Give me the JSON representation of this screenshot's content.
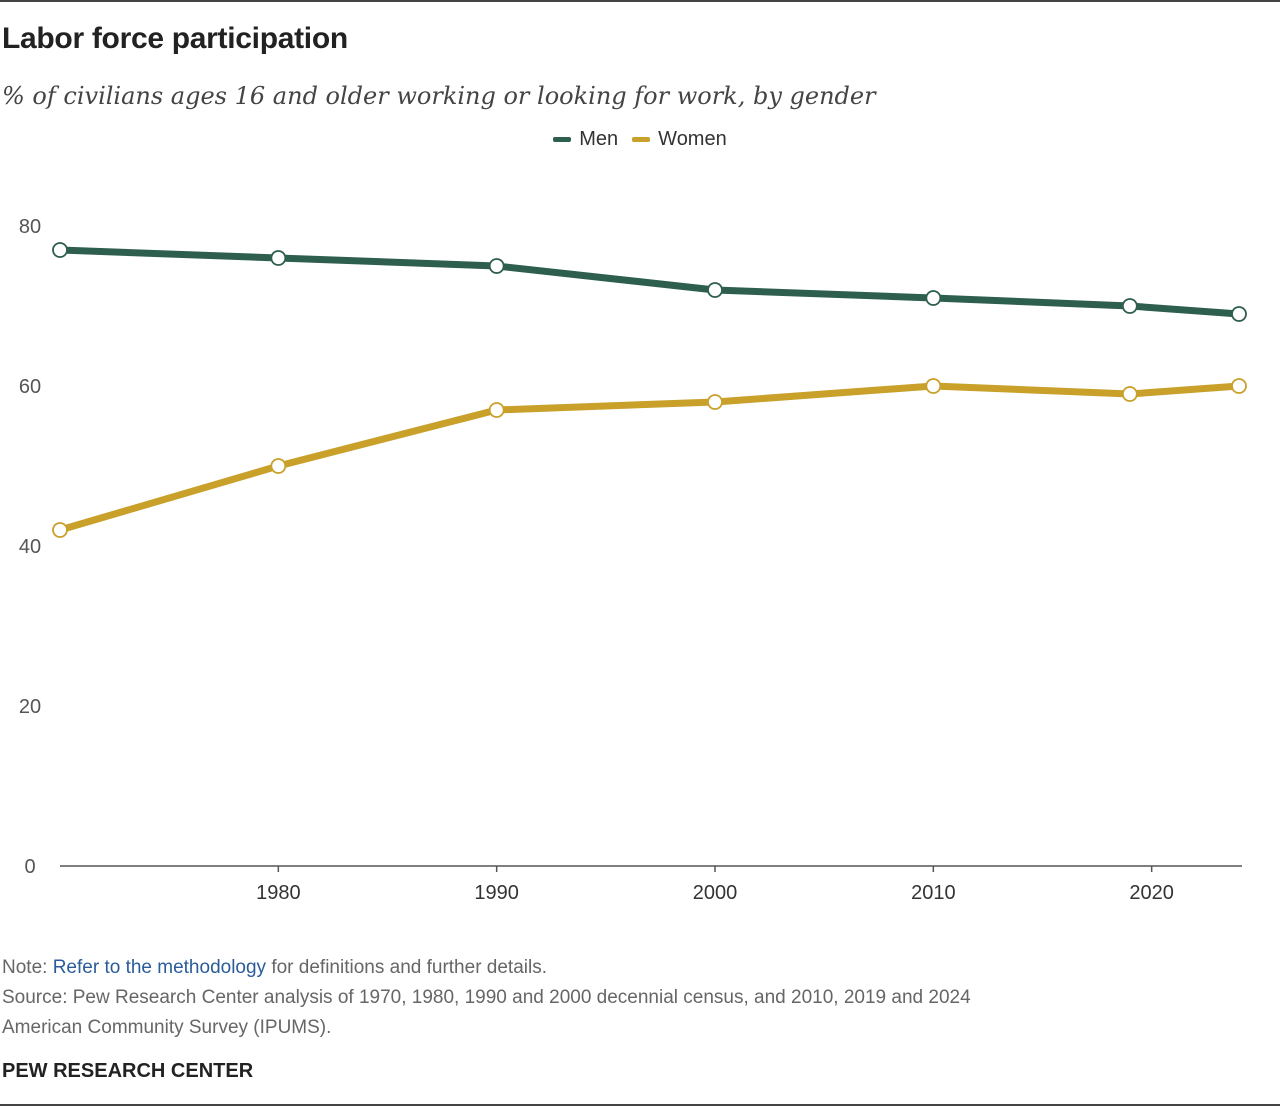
{
  "title": "Labor force participation",
  "subtitle": "% of civilians ages 16 and older working or looking for work, by gender",
  "note": {
    "prefix": "Note: ",
    "link": "Refer to the methodology",
    "suffix": " for definitions and further details."
  },
  "source_line1": "Source: Pew Research Center analysis of 1970, 1980, 1990 and 2000 decennial census, and 2010, 2019 and 2024",
  "source_line2": "American Community Survey (IPUMS).",
  "brand": "PEW RESEARCH CENTER",
  "chart_data": {
    "type": "line",
    "title": "Labor force participation",
    "xlabel": "",
    "ylabel": "",
    "x": [
      1970,
      1980,
      1990,
      2000,
      2010,
      2019,
      2024
    ],
    "xlim": [
      1970,
      2024
    ],
    "ylim": [
      0,
      80
    ],
    "xticks": [
      1980,
      1990,
      2000,
      2010,
      2020
    ],
    "yticks": [
      0,
      20,
      40,
      60,
      80
    ],
    "legend": "top-center",
    "grid": false,
    "series": [
      {
        "name": "Men",
        "color": "#2d5e4e",
        "values": [
          77,
          76,
          75,
          72,
          71,
          70,
          69
        ]
      },
      {
        "name": "Women",
        "color": "#c9a02a",
        "values": [
          42,
          50,
          57,
          58,
          60,
          59,
          60
        ]
      }
    ]
  }
}
